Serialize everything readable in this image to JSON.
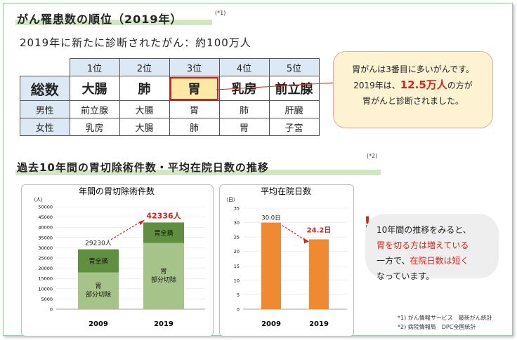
{
  "section1": {
    "title": "がん罹患数の順位（2019年）",
    "note": "(*1)",
    "subtitle": "2019年に新たに診断されたがん：約100万人"
  },
  "table": {
    "ranks": [
      "1位",
      "2位",
      "3位",
      "4位",
      "5位"
    ],
    "rows": [
      {
        "label": "総数",
        "cells": [
          "大腸",
          "肺",
          "胃",
          "乳房",
          "前立腺"
        ]
      },
      {
        "label": "男性",
        "cells": [
          "前立腺",
          "大腸",
          "胃",
          "肺",
          "肝臓"
        ]
      },
      {
        "label": "女性",
        "cells": [
          "乳房",
          "大腸",
          "肺",
          "胃",
          "子宮"
        ]
      }
    ]
  },
  "callout": {
    "line1": "胃がんは3番目に多いがんです。",
    "line2a": "2019年は、",
    "line2b": "12.5万人",
    "line2c": "の方が",
    "line3": "胃がんと診断されました。"
  },
  "section2": {
    "title": "過去10年間の胃切除術件数・平均在院日数の推移",
    "note": "(*2)"
  },
  "chart_data": [
    {
      "type": "bar",
      "title": "年間の胃切除術件数",
      "ylabel": "（人）",
      "ylim": [
        0,
        50000
      ],
      "yticks": [
        0,
        5000,
        10000,
        15000,
        20000,
        25000,
        30000,
        35000,
        40000,
        45000,
        50000
      ],
      "categories": [
        "2009",
        "2019"
      ],
      "series": [
        {
          "name": "胃部分切除",
          "values": [
            17930,
            32336
          ],
          "color": "#a6c48a"
        },
        {
          "name": "胃全摘",
          "values": [
            11300,
            10000
          ],
          "color": "#5f8f3f"
        }
      ],
      "totals": [
        29230,
        42336
      ],
      "total_labels": [
        "29230人",
        "42336人"
      ],
      "segment_labels": {
        "total": "胃全摘",
        "partial_1": "胃",
        "partial_2": "部分切除"
      },
      "colors": {
        "highlight": "#d9231e"
      }
    },
    {
      "type": "bar",
      "title": "平均在院日数",
      "ylabel": "（日）",
      "ylim": [
        0,
        35
      ],
      "yticks": [
        0,
        5,
        10,
        15,
        20,
        25,
        30,
        35
      ],
      "categories": [
        "2009",
        "2019"
      ],
      "values": [
        30.0,
        24.2
      ],
      "value_labels": [
        "30.0日",
        "24.2日"
      ],
      "color": "#ef8a33",
      "colors": {
        "highlight": "#d9231e"
      }
    }
  ],
  "side_note": {
    "excl": "!",
    "l1": "10年間の推移をみると、",
    "l2a": "胃を切る方は増えている",
    "l3a": "一方で、",
    "l3b": "在院日数は短く",
    "l4": "なっています。"
  },
  "footnotes": {
    "f1": "*1) がん情報サービス　最新がん統計",
    "f2": "*2) 病院情報局　DPC全国統計"
  }
}
